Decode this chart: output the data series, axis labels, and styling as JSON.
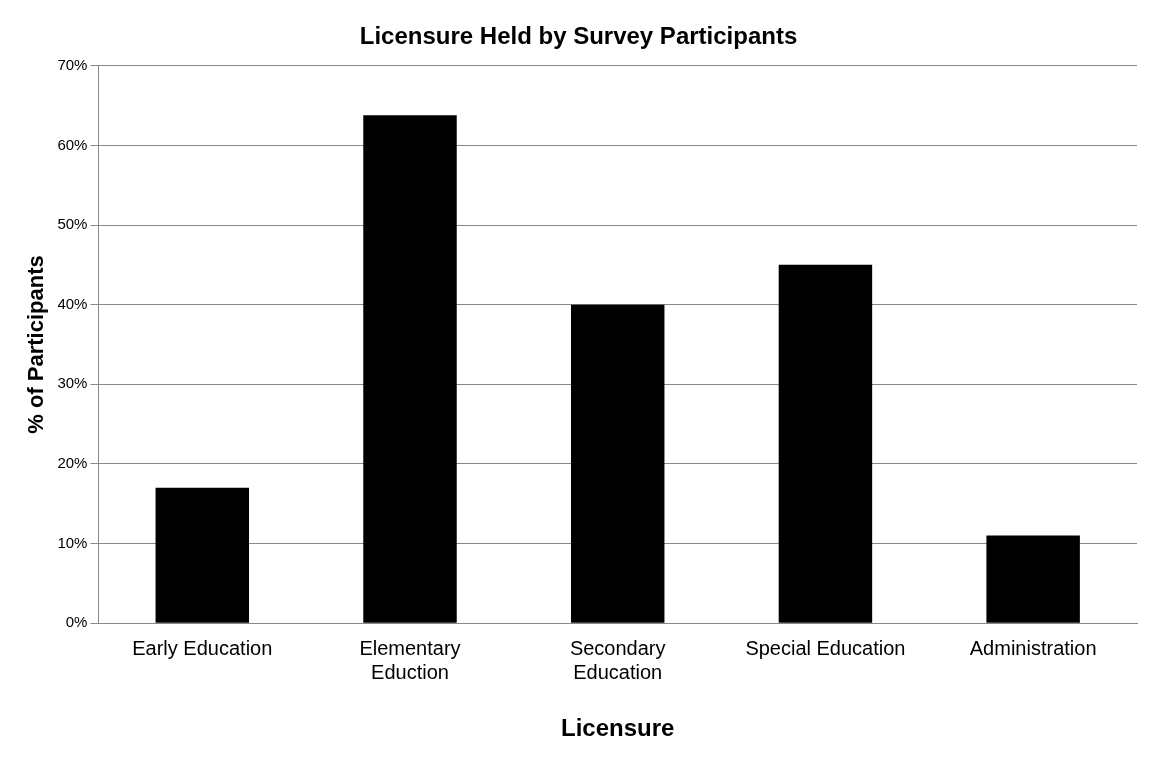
{
  "chart_data": {
    "type": "bar",
    "title": "Licensure Held by Survey Participants",
    "xlabel": "Licensure",
    "ylabel": "% of Participants",
    "categories": [
      "Early Education",
      "Elementary Eduction",
      "Secondary Education",
      "Special Education",
      "Administration"
    ],
    "values": [
      17,
      63.8,
      40,
      45,
      11
    ],
    "color": "#000000",
    "ylim": [
      0,
      70
    ],
    "yticks": [
      {
        "value": 0,
        "label": "0%"
      },
      {
        "value": 10,
        "label": "10%"
      },
      {
        "value": 20,
        "label": "20%"
      },
      {
        "value": 30,
        "label": "30%"
      },
      {
        "value": 40,
        "label": "40%"
      },
      {
        "value": 50,
        "label": "50%"
      },
      {
        "value": 60,
        "label": "60%"
      },
      {
        "value": 70,
        "label": "70%"
      }
    ],
    "grid": "y",
    "legend": false
  }
}
